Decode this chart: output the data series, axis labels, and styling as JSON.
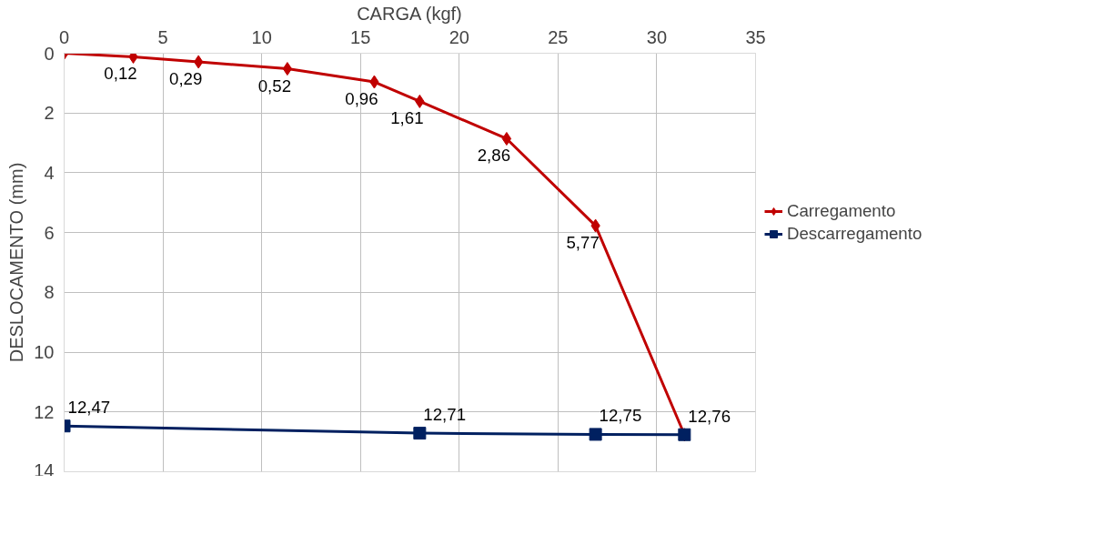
{
  "chart_data": {
    "type": "line",
    "xlabel": "CARGA (kgf)",
    "ylabel": "DESLOCAMENTO (mm)",
    "xlim": [
      0,
      35
    ],
    "xticks": [
      0,
      5,
      10,
      15,
      20,
      25,
      30,
      35
    ],
    "ylim": [
      14,
      0
    ],
    "yticks": [
      0,
      2,
      4,
      6,
      8,
      10,
      12,
      14
    ],
    "grid": true,
    "legend": "right",
    "series": [
      {
        "name": "Carregamento",
        "color": "#c00000",
        "marker": "diamond",
        "x": [
          0,
          3.5,
          6.8,
          11.3,
          15.7,
          18.0,
          22.4,
          26.9,
          31.4
        ],
        "values": [
          0,
          0.12,
          0.29,
          0.52,
          0.96,
          1.61,
          2.86,
          5.77,
          12.76
        ],
        "value_labels": [
          null,
          "0,12",
          "0,29",
          "0,52",
          "0,96",
          "1,61",
          "2,86",
          "5,77",
          null
        ]
      },
      {
        "name": "Descarregamento",
        "color": "#002060",
        "marker": "square",
        "x": [
          0,
          18.0,
          26.9,
          31.4
        ],
        "values": [
          12.47,
          12.71,
          12.75,
          12.76
        ],
        "value_labels": [
          "12,47",
          "12,71",
          "12,75",
          "12,76"
        ]
      }
    ]
  }
}
